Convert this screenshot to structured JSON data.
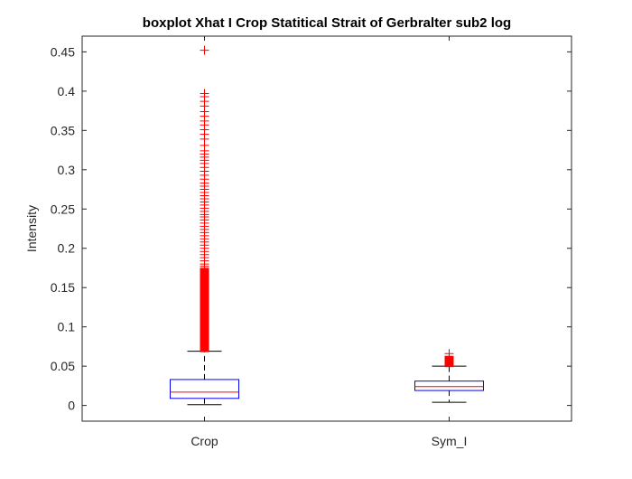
{
  "chart_data": {
    "type": "boxplot",
    "title": "boxplot Xhat I Crop Statitical Strait of Gerbralter sub2 log",
    "xlabel": "",
    "ylabel": "Intensity",
    "ylim": [
      -0.02,
      0.47
    ],
    "yticks": [
      0,
      0.05,
      0.1,
      0.15,
      0.2,
      0.25,
      0.3,
      0.35,
      0.4,
      0.45
    ],
    "ytick_labels": [
      "0",
      "0.05",
      "0.1",
      "0.15",
      "0.2",
      "0.25",
      "0.3",
      "0.35",
      "0.4",
      "0.45"
    ],
    "grid": false,
    "colors": {
      "box": "#0000ff",
      "median": "#ff0000",
      "whisker": "#000000",
      "outlier": "#ff0000",
      "axes": "#262626"
    },
    "categories": [
      "Crop",
      "Sym_I"
    ],
    "boxes": [
      {
        "label": "Crop",
        "whisker_low": 0.001,
        "q1": 0.009,
        "median": 0.017,
        "q3": 0.033,
        "whisker_high": 0.069,
        "outlier_band": [
          0.069,
          0.174
        ],
        "outliers": [
          0.452,
          0.397,
          0.393,
          0.387,
          0.381,
          0.374,
          0.368,
          0.362,
          0.357,
          0.351,
          0.345,
          0.339,
          0.331,
          0.324,
          0.32,
          0.316,
          0.312,
          0.308,
          0.303,
          0.298,
          0.293,
          0.288,
          0.283,
          0.279,
          0.275,
          0.271,
          0.267,
          0.263,
          0.259,
          0.255,
          0.251,
          0.247,
          0.243,
          0.24,
          0.236,
          0.232,
          0.228,
          0.224,
          0.22,
          0.216,
          0.212,
          0.208,
          0.204,
          0.2,
          0.196,
          0.192,
          0.188,
          0.184,
          0.18,
          0.177
        ]
      },
      {
        "label": "Sym_I",
        "whisker_low": 0.004,
        "q1": 0.019,
        "median": 0.024,
        "q3": 0.031,
        "whisker_high": 0.05,
        "outlier_band": [
          0.05,
          0.062
        ],
        "outliers": [
          0.066
        ]
      }
    ]
  }
}
